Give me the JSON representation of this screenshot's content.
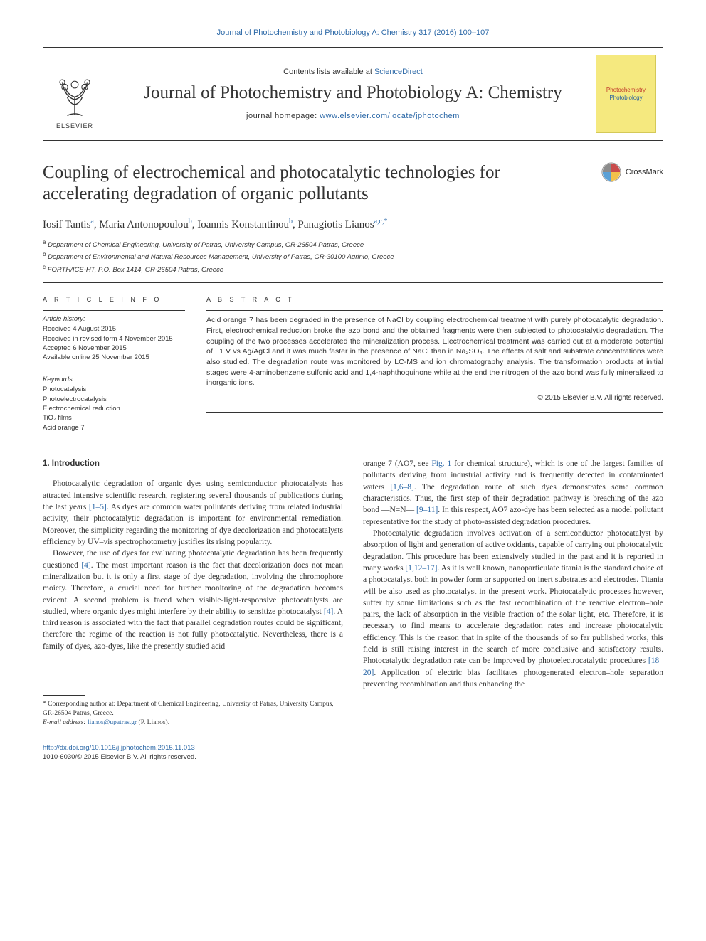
{
  "colors": {
    "link": "#2e6aa8",
    "text": "#333333",
    "rule": "#333333",
    "cover_bg": "#f5e97f",
    "cover_border": "#d4c958",
    "cover_red": "#c0392b",
    "cover_blue": "#2962a0"
  },
  "header": {
    "top_citation": "Journal of Photochemistry and Photobiology A: Chemistry 317 (2016) 100–107",
    "contents_prefix": "Contents lists available at ",
    "contents_link": "ScienceDirect",
    "journal_name": "Journal of Photochemistry and Photobiology A: Chemistry",
    "homepage_prefix": "journal homepage: ",
    "homepage_url": "www.elsevier.com/locate/jphotochem",
    "publisher_logo_text": "ELSEVIER",
    "cover_line1": "Photochemistry",
    "cover_line2": "Photobiology"
  },
  "article": {
    "crossmark_label": "CrossMark",
    "title": "Coupling of electrochemical and photocatalytic technologies for accelerating degradation of organic pollutants",
    "authors_html": "Iosif Tantis<sup>a</sup>, Maria Antonopoulou<sup>b</sup>, Ioannis Konstantinou<sup>b</sup>, Panagiotis Lianos<sup>a,c,*</sup>",
    "affiliations": [
      "a Department of Chemical Engineering, University of Patras, University Campus, GR-26504 Patras, Greece",
      "b Department of Environmental and Natural Resources Management, University of Patras, GR-30100 Agrinio, Greece",
      "c FORTH/ICE-HT, P.O. Box 1414, GR-26504 Patras, Greece"
    ]
  },
  "info": {
    "heading": "A R T I C L E   I N F O",
    "history_label": "Article history:",
    "history": [
      "Received 4 August 2015",
      "Received in revised form 4 November 2015",
      "Accepted 6 November 2015",
      "Available online 25 November 2015"
    ],
    "keywords_label": "Keywords:",
    "keywords": [
      "Photocatalysis",
      "Photoelectrocatalysis",
      "Electrochemical reduction",
      "TiO₂ films",
      "Acid orange 7"
    ]
  },
  "abstract": {
    "heading": "A B S T R A C T",
    "body": "Acid orange 7 has been degraded in the presence of NaCl by coupling electrochemical treatment with purely photocatalytic degradation. First, electrochemical reduction broke the azo bond and the obtained fragments were then subjected to photocatalytic degradation. The coupling of the two processes accelerated the mineralization process. Electrochemical treatment was carried out at a moderate potential of −1 V vs Ag/AgCl and it was much faster in the presence of NaCl than in Na₂SO₄. The effects of salt and substrate concentrations were also studied. The degradation route was monitored by LC-MS and ion chromatography analysis. The transformation products at initial stages were 4-aminobenzene sulfonic acid and 1,4-naphthoquinone while at the end the nitrogen of the azo bond was fully mineralized to inorganic ions.",
    "copyright": "© 2015 Elsevier B.V. All rights reserved."
  },
  "body": {
    "section_heading": "1. Introduction",
    "col1": {
      "p1": "Photocatalytic degradation of organic dyes using semiconductor photocatalysts has attracted intensive scientific research, registering several thousands of publications during the last years [1–5]. As dyes are common water pollutants deriving from related industrial activity, their photocatalytic degradation is important for environmental remediation. Moreover, the simplicity regarding the monitoring of dye decolorization and photocatalysts efficiency by UV–vis spectrophotometry justifies its rising popularity.",
      "p2": "However, the use of dyes for evaluating photocatalytic degradation has been frequently questioned [4]. The most important reason is the fact that decolorization does not mean mineralization but it is only a first stage of dye degradation, involving the chromophore moiety. Therefore, a crucial need for further monitoring of the degradation becomes evident. A second problem is faced when visible-light-responsive photocatalysts are studied, where organic dyes might interfere by their ability to sensitize photocatalyst [4]. A third reason is associated with the fact that parallel degradation routes could be significant, therefore the regime of the reaction is not fully photocatalytic. Nevertheless, there is a family of dyes, azo-dyes, like the presently studied acid"
    },
    "col2": {
      "p1": "orange 7 (AO7, see Fig. 1 for chemical structure), which is one of the largest families of pollutants deriving from industrial activity and is frequently detected in contaminated waters [1,6–8]. The degradation route of such dyes demonstrates some common characteristics. Thus, the first step of their degradation pathway is breaching of the azo bond —N=N— [9–11]. In this respect, AO7 azo-dye has been selected as a model pollutant representative for the study of photo-assisted degradation procedures.",
      "p2": "Photocatalytic degradation involves activation of a semiconductor photocatalyst by absorption of light and generation of active oxidants, capable of carrying out photocatalytic degradation. This procedure has been extensively studied in the past and it is reported in many works [1,12–17]. As it is well known, nanoparticulate titania is the standard choice of a photocatalyst both in powder form or supported on inert substrates and electrodes. Titania will be also used as photocatalyst in the present work. Photocatalytic processes however, suffer by some limitations such as the fast recombination of the reactive electron–hole pairs, the lack of absorption in the visible fraction of the solar light, etc. Therefore, it is necessary to find means to accelerate degradation rates and increase photocatalytic efficiency. This is the reason that in spite of the thousands of so far published works, this field is still raising interest in the search of more conclusive and satisfactory results. Photocatalytic degradation rate can be improved by photoelectrocatalytic procedures [18–20]. Application of electric bias facilitates photogenerated electron–hole separation preventing recombination and thus enhancing the"
    }
  },
  "footnote": {
    "corr": "* Corresponding author at: Department of Chemical Engineering, University of Patras, University Campus, GR-26504 Patras, Greece.",
    "email_label": "E-mail address:",
    "email": "lianos@upatras.gr",
    "email_who": "(P. Lianos)."
  },
  "bottom": {
    "doi": "http://dx.doi.org/10.1016/j.jphotochem.2015.11.013",
    "issn_line": "1010-6030/© 2015 Elsevier B.V. All rights reserved."
  }
}
